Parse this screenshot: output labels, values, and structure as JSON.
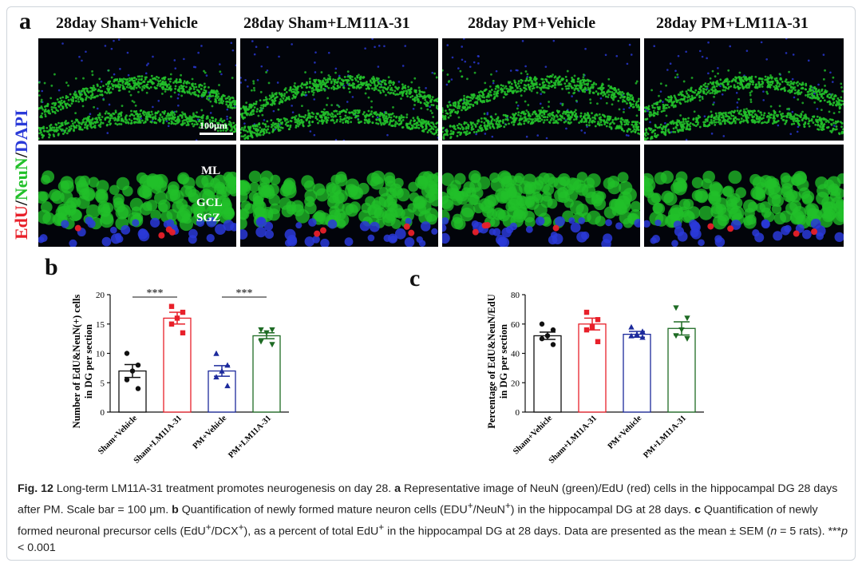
{
  "panel_a": {
    "letter": "a",
    "titles": [
      "28day Sham+Vehicle",
      "28day Sham+LM11A-31",
      "28day PM+Vehicle",
      "28day PM+LM11A-31"
    ],
    "stain_label": {
      "edu": "EdU",
      "sep1": "/",
      "neun": "NeuN",
      "sep2": "/",
      "dapi": "DAPI"
    },
    "scale_bar": "100μm",
    "layers": [
      "ML",
      "GCL",
      "SGZ"
    ],
    "colors": {
      "edu": "#e8202a",
      "neun": "#22c02a",
      "dapi": "#2a3ad8"
    }
  },
  "panel_b": {
    "letter": "b"
  },
  "panel_c": {
    "letter": "c"
  },
  "chart_data": [
    {
      "type": "bar",
      "panel": "b",
      "categories": [
        "Sham+Vehicle",
        "Sham+LM11A-31",
        "PM+Vehicle",
        "PM+LM11A-31"
      ],
      "values": [
        7,
        16,
        7,
        13
      ],
      "sem": [
        1.1,
        1.0,
        0.9,
        0.5
      ],
      "points": [
        [
          10,
          8,
          7,
          5.5,
          4
        ],
        [
          18,
          17,
          16,
          15,
          13.5
        ],
        [
          10,
          8,
          7,
          6,
          4.5
        ],
        [
          14,
          14,
          13.5,
          12,
          11.5
        ]
      ],
      "markers": [
        "circle",
        "square",
        "triangle",
        "triangle-down"
      ],
      "colors": [
        "#111111",
        "#e8202a",
        "#1c2a9c",
        "#1e6b24"
      ],
      "ylabel": "Number of EdU&NeuN(+) cells in DG per section",
      "ylim": [
        0,
        20
      ],
      "yticks": [
        0,
        5,
        10,
        15,
        20
      ],
      "significance": [
        {
          "pair": [
            0,
            1
          ],
          "label": "***"
        },
        {
          "pair": [
            2,
            3
          ],
          "label": "***"
        }
      ]
    },
    {
      "type": "bar",
      "panel": "c",
      "categories": [
        "Sham+Vehicle",
        "Sham+LM11A-31",
        "PM+Vehicle",
        "PM+LM11A-31"
      ],
      "values": [
        52,
        60,
        53,
        57
      ],
      "sem": [
        2.5,
        4.0,
        2.0,
        4.5
      ],
      "points": [
        [
          60,
          56,
          52,
          50,
          46
        ],
        [
          68,
          63,
          58,
          56,
          48
        ],
        [
          58,
          55,
          53,
          52,
          51
        ],
        [
          71,
          64,
          56,
          52,
          50
        ]
      ],
      "markers": [
        "circle",
        "square",
        "triangle",
        "triangle-down"
      ],
      "colors": [
        "#111111",
        "#e8202a",
        "#1c2a9c",
        "#1e6b24"
      ],
      "ylabel": "Percentage of EdU&NeuN/EdU in DG per section",
      "ylim": [
        0,
        80
      ],
      "yticks": [
        0,
        20,
        40,
        60,
        80
      ],
      "significance": []
    }
  ],
  "caption": {
    "fig": "Fig. 12",
    "text1": " Long-term LM11A-31 treatment promotes neurogenesis on day 28. ",
    "a": "a",
    "text2": " Representative image of NeuN (green)/EdU (red) cells in the hippocampal DG 28 days after PM. Scale bar = 100 μm. ",
    "b": "b",
    "text3": " Quantification of newly formed mature neuron cells (EDU",
    "sup1": "+",
    "text4": "/NeuN",
    "sup2": "+",
    "text5": ") in the hippocampal DG at 28 days. ",
    "c": "c",
    "text6": " Quantification of newly formed neuronal precursor cells (EdU",
    "sup3": "+",
    "text7": "/DCX",
    "sup4": "+",
    "text8": "), as a percent of total EdU",
    "sup5": "+",
    "text9": " in the hippocampal DG at 28 days. Data are presented as the mean ± SEM (",
    "n": "n",
    "text10": " = 5 rats). ***",
    "p": "p",
    "text11": " < 0.001"
  }
}
